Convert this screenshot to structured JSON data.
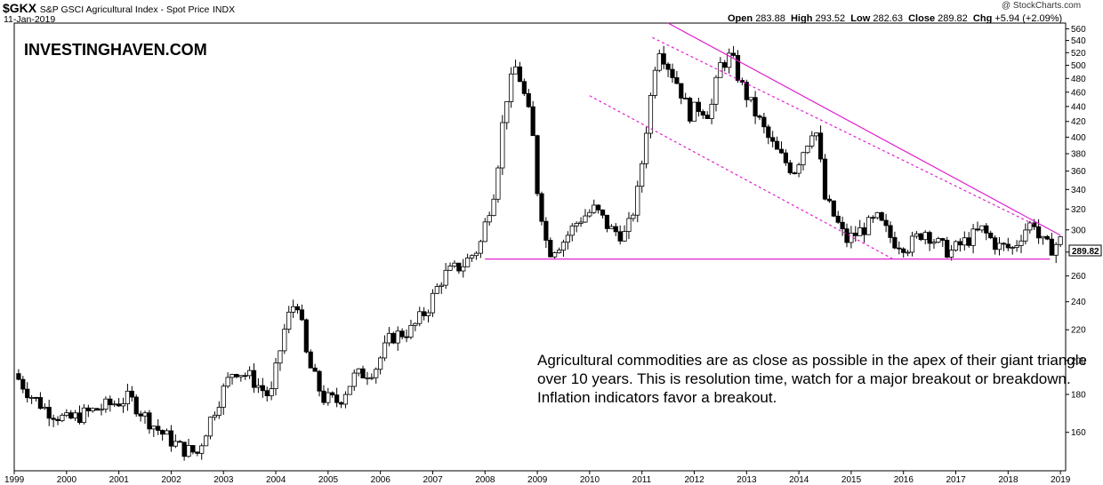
{
  "header": {
    "symbol": "$GKX",
    "name": "S&P GSCI Agricultural Index - Spot Price",
    "exchange": "INDX",
    "date": "11-Jan-2019",
    "source": "@ StockCharts.com",
    "open_label": "Open",
    "open_value": "283.88",
    "high_label": "High",
    "high_value": "293.52",
    "low_label": "Low",
    "low_value": "282.63",
    "close_label": "Close",
    "close_value": "289.82",
    "chg_label": "Chg",
    "chg_value": "+5.94 (+2.09%)"
  },
  "watermark": "INVESTINGHAVEN.COM",
  "annotation": "Agricultural commodities are as close as possible in the apex of their giant triangle over 10 years. This is resolution time, watch for a major breakout or breakdown. Inflation indicators favor a breakout.",
  "last_price_label": "289.82",
  "chart_data": {
    "type": "candlestick",
    "x_range": [
      1999.0,
      2019.1
    ],
    "y_range": [
      142,
      570
    ],
    "y_scale": "log",
    "y_ticks": [
      160,
      180,
      200,
      220,
      240,
      260,
      280,
      300,
      320,
      340,
      360,
      380,
      400,
      420,
      440,
      460,
      480,
      500,
      520,
      540,
      560
    ],
    "x_ticks": [
      1999,
      2000,
      2001,
      2002,
      2003,
      2004,
      2005,
      2006,
      2007,
      2008,
      2009,
      2010,
      2011,
      2012,
      2013,
      2014,
      2015,
      2016,
      2017,
      2018,
      2019
    ],
    "grid": false,
    "colors": {
      "up": "#ffffff",
      "down": "#000000",
      "trend": "#e020d0",
      "label_bg": "#ffffff"
    },
    "price_points": [
      [
        1999.0,
        192
      ],
      [
        1999.3,
        180
      ],
      [
        1999.6,
        172
      ],
      [
        2000.0,
        166
      ],
      [
        2000.4,
        170
      ],
      [
        2000.8,
        174
      ],
      [
        2001.2,
        178
      ],
      [
        2001.5,
        168
      ],
      [
        2001.8,
        160
      ],
      [
        2002.2,
        152
      ],
      [
        2002.5,
        150
      ],
      [
        2002.8,
        170
      ],
      [
        2003.2,
        195
      ],
      [
        2003.5,
        190
      ],
      [
        2003.9,
        178
      ],
      [
        2004.2,
        225
      ],
      [
        2004.4,
        243
      ],
      [
        2004.6,
        200
      ],
      [
        2004.9,
        178
      ],
      [
        2005.2,
        176
      ],
      [
        2005.5,
        190
      ],
      [
        2005.9,
        195
      ],
      [
        2006.2,
        215
      ],
      [
        2006.6,
        220
      ],
      [
        2006.9,
        235
      ],
      [
        2007.2,
        260
      ],
      [
        2007.6,
        270
      ],
      [
        2007.9,
        285
      ],
      [
        2008.2,
        345
      ],
      [
        2008.4,
        450
      ],
      [
        2008.6,
        500
      ],
      [
        2008.9,
        410
      ],
      [
        2009.0,
        340
      ],
      [
        2009.2,
        280
      ],
      [
        2009.5,
        290
      ],
      [
        2009.8,
        310
      ],
      [
        2010.1,
        320
      ],
      [
        2010.4,
        300
      ],
      [
        2010.7,
        295
      ],
      [
        2010.9,
        330
      ],
      [
        2011.0,
        370
      ],
      [
        2011.2,
        470
      ],
      [
        2011.3,
        535
      ],
      [
        2011.5,
        500
      ],
      [
        2011.7,
        470
      ],
      [
        2011.9,
        430
      ],
      [
        2012.1,
        440
      ],
      [
        2012.3,
        430
      ],
      [
        2012.5,
        500
      ],
      [
        2012.7,
        515
      ],
      [
        2012.9,
        470
      ],
      [
        2013.1,
        440
      ],
      [
        2013.4,
        400
      ],
      [
        2013.6,
        380
      ],
      [
        2013.9,
        360
      ],
      [
        2014.2,
        400
      ],
      [
        2014.3,
        420
      ],
      [
        2014.5,
        330
      ],
      [
        2014.7,
        310
      ],
      [
        2014.9,
        290
      ],
      [
        2015.2,
        300
      ],
      [
        2015.5,
        310
      ],
      [
        2015.8,
        290
      ],
      [
        2016.1,
        285
      ],
      [
        2016.4,
        300
      ],
      [
        2016.7,
        285
      ],
      [
        2016.9,
        280
      ],
      [
        2017.2,
        290
      ],
      [
        2017.5,
        300
      ],
      [
        2017.8,
        285
      ],
      [
        2018.1,
        283
      ],
      [
        2018.3,
        300
      ],
      [
        2018.5,
        308
      ],
      [
        2018.6,
        290
      ],
      [
        2018.8,
        283
      ],
      [
        2019.0,
        290
      ]
    ],
    "trendlines": [
      {
        "style": "solid",
        "from": [
          2011.5,
          570
        ],
        "to": [
          2019.0,
          295
        ]
      },
      {
        "style": "dotted",
        "from": [
          2011.2,
          545
        ],
        "to": [
          2018.5,
          305
        ]
      },
      {
        "style": "dotted",
        "from": [
          2010.0,
          455
        ],
        "to": [
          2015.8,
          274
        ]
      },
      {
        "style": "solid",
        "from": [
          2008.0,
          274
        ],
        "to": [
          2018.8,
          274
        ]
      }
    ]
  }
}
